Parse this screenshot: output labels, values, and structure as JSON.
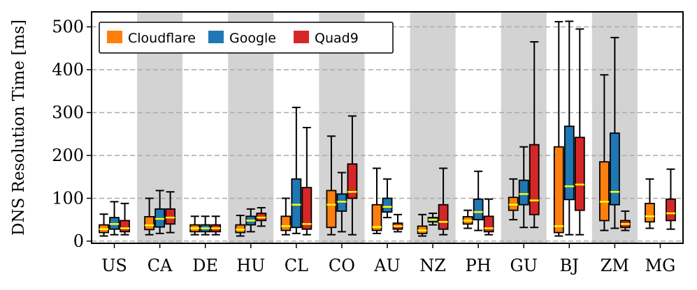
{
  "chart_data": {
    "type": "boxplot",
    "ylabel": "DNS Resolution Time [ms]",
    "ylim": [
      -5,
      535
    ],
    "yticks": [
      0,
      100,
      200,
      300,
      400,
      500
    ],
    "grid": "horizontal-dashed",
    "legend_position": "top-left",
    "categories": [
      "US",
      "CA",
      "DE",
      "HU",
      "CL",
      "CO",
      "AU",
      "NZ",
      "PH",
      "GU",
      "BJ",
      "ZM",
      "MG"
    ],
    "shaded_categories": [
      "CA",
      "HU",
      "CO",
      "NZ",
      "GU",
      "ZM"
    ],
    "series": [
      {
        "name": "Cloudflare",
        "color": "#ff7f0e",
        "boxes": [
          {
            "category": "US",
            "whislo": 12,
            "q1": 20,
            "median": 28,
            "q3": 38,
            "whishi": 63
          },
          {
            "category": "CA",
            "whislo": 15,
            "q1": 27,
            "median": 37,
            "q3": 57,
            "whishi": 100
          },
          {
            "category": "DE",
            "whislo": 15,
            "q1": 22,
            "median": 30,
            "q3": 38,
            "whishi": 58
          },
          {
            "category": "HU",
            "whislo": 12,
            "q1": 20,
            "median": 27,
            "q3": 38,
            "whishi": 60
          },
          {
            "category": "CL",
            "whislo": 15,
            "q1": 25,
            "median": 35,
            "q3": 58,
            "whishi": 100
          },
          {
            "category": "CO",
            "whislo": 15,
            "q1": 32,
            "median": 85,
            "q3": 118,
            "whishi": 245
          },
          {
            "category": "AU",
            "whislo": 18,
            "q1": 25,
            "median": 33,
            "q3": 85,
            "whishi": 170
          },
          {
            "category": "NZ",
            "whislo": 12,
            "q1": 18,
            "median": 25,
            "q3": 35,
            "whishi": 62
          },
          {
            "category": "PH",
            "whislo": 30,
            "q1": 40,
            "median": 48,
            "q3": 57,
            "whishi": 72
          },
          {
            "category": "GU",
            "whislo": 50,
            "q1": 72,
            "median": 85,
            "q3": 102,
            "whishi": 145
          },
          {
            "category": "BJ",
            "whislo": 12,
            "q1": 20,
            "median": 35,
            "q3": 220,
            "whishi": 512
          },
          {
            "category": "ZM",
            "whislo": 25,
            "q1": 48,
            "median": 92,
            "q3": 185,
            "whishi": 388
          },
          {
            "category": "MG",
            "whislo": 30,
            "q1": 45,
            "median": 58,
            "q3": 88,
            "whishi": 145
          }
        ]
      },
      {
        "name": "Google",
        "color": "#1f77b4",
        "boxes": [
          {
            "category": "US",
            "whislo": 15,
            "q1": 28,
            "median": 40,
            "q3": 55,
            "whishi": 92
          },
          {
            "category": "CA",
            "whislo": 18,
            "q1": 33,
            "median": 52,
            "q3": 75,
            "whishi": 118
          },
          {
            "category": "DE",
            "whislo": 15,
            "q1": 22,
            "median": 30,
            "q3": 38,
            "whishi": 58
          },
          {
            "category": "HU",
            "whislo": 22,
            "q1": 38,
            "median": 48,
            "q3": 58,
            "whishi": 75
          },
          {
            "category": "CL",
            "whislo": 18,
            "q1": 32,
            "median": 85,
            "q3": 145,
            "whishi": 312
          },
          {
            "category": "CO",
            "whislo": 22,
            "q1": 70,
            "median": 92,
            "q3": 110,
            "whishi": 160
          },
          {
            "category": "AU",
            "whislo": 55,
            "q1": 68,
            "median": 80,
            "q3": 100,
            "whishi": 145
          },
          {
            "category": "NZ",
            "whislo": 38,
            "q1": 45,
            "median": 50,
            "q3": 55,
            "whishi": 65
          },
          {
            "category": "PH",
            "whislo": 25,
            "q1": 50,
            "median": 68,
            "q3": 98,
            "whishi": 163
          },
          {
            "category": "GU",
            "whislo": 32,
            "q1": 85,
            "median": 110,
            "q3": 142,
            "whishi": 220
          },
          {
            "category": "BJ",
            "whislo": 15,
            "q1": 97,
            "median": 128,
            "q3": 268,
            "whishi": 513
          },
          {
            "category": "ZM",
            "whislo": 30,
            "q1": 85,
            "median": 115,
            "q3": 252,
            "whishi": 475
          },
          {
            "category": "MG",
            "whislo": 0,
            "q1": 0,
            "median": 0,
            "q3": 0,
            "whishi": 0,
            "missing": true
          }
        ]
      },
      {
        "name": "Quad9",
        "color": "#d62728",
        "boxes": [
          {
            "category": "US",
            "whislo": 15,
            "q1": 22,
            "median": 30,
            "q3": 48,
            "whishi": 88
          },
          {
            "category": "CA",
            "whislo": 20,
            "q1": 40,
            "median": 55,
            "q3": 75,
            "whishi": 115
          },
          {
            "category": "DE",
            "whislo": 15,
            "q1": 22,
            "median": 30,
            "q3": 38,
            "whishi": 58
          },
          {
            "category": "HU",
            "whislo": 35,
            "q1": 48,
            "median": 55,
            "q3": 65,
            "whishi": 78
          },
          {
            "category": "CL",
            "whislo": 15,
            "q1": 28,
            "median": 40,
            "q3": 125,
            "whishi": 265
          },
          {
            "category": "CO",
            "whislo": 15,
            "q1": 100,
            "median": 115,
            "q3": 180,
            "whishi": 292
          },
          {
            "category": "AU",
            "whislo": 22,
            "q1": 28,
            "median": 35,
            "q3": 42,
            "whishi": 62
          },
          {
            "category": "NZ",
            "whislo": 15,
            "q1": 28,
            "median": 45,
            "q3": 85,
            "whishi": 170
          },
          {
            "category": "PH",
            "whislo": 15,
            "q1": 22,
            "median": 30,
            "q3": 58,
            "whishi": 98
          },
          {
            "category": "GU",
            "whislo": 32,
            "q1": 62,
            "median": 95,
            "q3": 225,
            "whishi": 465
          },
          {
            "category": "BJ",
            "whislo": 15,
            "q1": 72,
            "median": 132,
            "q3": 242,
            "whishi": 495
          },
          {
            "category": "ZM",
            "whislo": 25,
            "q1": 32,
            "median": 40,
            "q3": 48,
            "whishi": 70
          },
          {
            "category": "MG",
            "whislo": 28,
            "q1": 48,
            "median": 65,
            "q3": 98,
            "whishi": 168
          }
        ]
      }
    ],
    "median_color": "#ffff00"
  }
}
